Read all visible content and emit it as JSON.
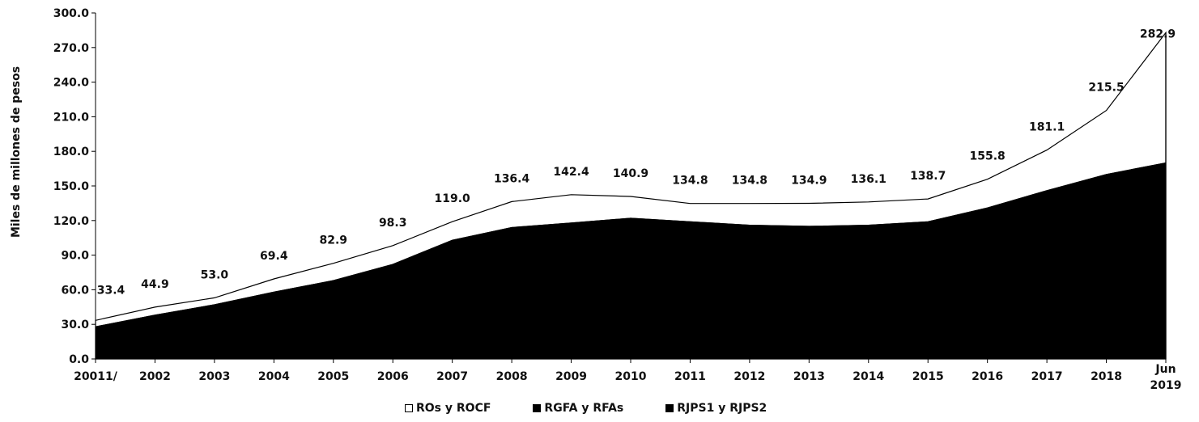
{
  "chart_data": {
    "type": "area",
    "ylabel": "Miles de millones de pesos",
    "ylim": [
      0,
      300
    ],
    "yticks": [
      "0.0",
      "30.0",
      "60.0",
      "90.0",
      "120.0",
      "150.0",
      "180.0",
      "210.0",
      "240.0",
      "270.0",
      "300.0"
    ],
    "categories": [
      "20011/",
      "2002",
      "2003",
      "2004",
      "2005",
      "2006",
      "2007",
      "2008",
      "2009",
      "2010",
      "2011",
      "2012",
      "2013",
      "2014",
      "2015",
      "2016",
      "2017",
      "2018",
      "Jun 2019"
    ],
    "totals_labels": [
      "33.4",
      "44.9",
      "53.0",
      "69.4",
      "82.9",
      "98.3",
      "119.0",
      "136.4",
      "142.4",
      "140.9",
      "134.8",
      "134.8",
      "134.9",
      "136.1",
      "138.7",
      "155.8",
      "181.1",
      "215.5",
      "282.9"
    ],
    "series": [
      {
        "name": "ROs y ROCF",
        "color": "#ffffff",
        "cumulative_top": [
          33.4,
          44.9,
          53.0,
          69.4,
          82.9,
          98.3,
          119.0,
          136.4,
          142.4,
          140.9,
          134.8,
          134.8,
          134.9,
          136.1,
          138.7,
          155.8,
          181.1,
          215.5,
          282.9
        ]
      },
      {
        "name": "RGFA y RFAs",
        "color": "#000000",
        "cumulative_top": [
          28,
          38,
          47,
          58,
          68,
          82,
          103,
          114,
          118,
          122,
          119,
          116,
          115,
          116,
          119,
          131,
          146,
          160,
          170
        ]
      },
      {
        "name": "RJPS1 y RJPS2",
        "color": "#000000",
        "cumulative_top": [
          28,
          38,
          47,
          58,
          68,
          82,
          103,
          114,
          118,
          122,
          119,
          116,
          115,
          116,
          119,
          131,
          146,
          160,
          170
        ]
      }
    ],
    "grid": false,
    "legend_position": "bottom"
  }
}
